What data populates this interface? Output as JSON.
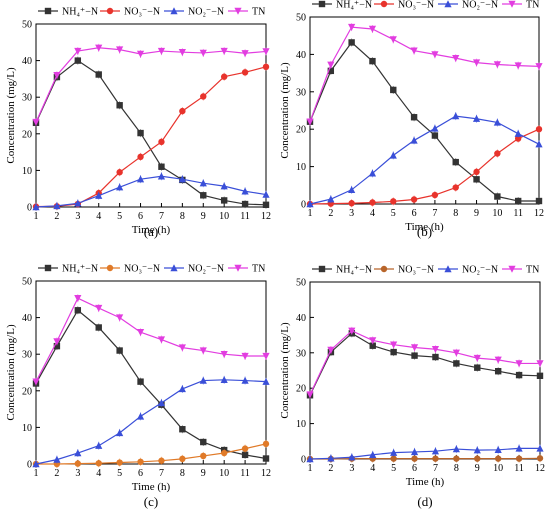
{
  "colors": {
    "nh4": "#333333",
    "no3": "#e8332c",
    "no2": "#3a4fd8",
    "tn": "#e23de0"
  },
  "chart_data": [
    {
      "type": "line",
      "panel_label": "(a)",
      "xlabel": "Time (h)",
      "ylabel": "Concentration (mg/L)",
      "xlim": [
        1,
        12
      ],
      "ylim": [
        0,
        50
      ],
      "x_ticks": [
        "1",
        "2",
        "3",
        "4",
        "5",
        "6",
        "7",
        "8",
        "9",
        "10",
        "11",
        "12"
      ],
      "y_ticks": [
        "0",
        "10",
        "20",
        "30",
        "40",
        "50"
      ],
      "legend_position": "top",
      "grid": false,
      "x": [
        1,
        2,
        3,
        4,
        5,
        6,
        7,
        8,
        9,
        10,
        11,
        12
      ],
      "series": [
        {
          "name": "NH₄⁺−N",
          "color": "#333333",
          "marker": "square",
          "values": [
            23.0,
            35.5,
            40.0,
            36.2,
            27.8,
            20.2,
            11.0,
            7.4,
            3.2,
            1.8,
            0.8,
            0.6
          ]
        },
        {
          "name": "NO₃⁻−N",
          "color": "#e8332c",
          "marker": "circle",
          "values": [
            0.1,
            0.2,
            0.8,
            3.8,
            9.5,
            13.7,
            17.8,
            26.2,
            30.2,
            35.6,
            36.8,
            38.3
          ]
        },
        {
          "name": "NO₂⁻−N",
          "color": "#3a4fd8",
          "marker": "triangle-up",
          "values": [
            0.0,
            0.3,
            1.0,
            3.1,
            5.4,
            7.6,
            8.4,
            7.6,
            6.5,
            5.7,
            4.3,
            3.4
          ]
        },
        {
          "name": "TN",
          "color": "#e23de0",
          "marker": "triangle-down",
          "values": [
            23.2,
            36.0,
            42.6,
            43.5,
            43.0,
            41.8,
            42.6,
            42.3,
            42.1,
            42.6,
            42.0,
            42.5
          ]
        }
      ]
    },
    {
      "type": "line",
      "panel_label": "(b)",
      "xlabel": "Time (h)",
      "ylabel": "Concentration (mg/L)",
      "xlim": [
        1,
        12
      ],
      "ylim": [
        0,
        50
      ],
      "x_ticks": [
        "1",
        "2",
        "3",
        "4",
        "5",
        "6",
        "7",
        "8",
        "9",
        "10",
        "11",
        "12"
      ],
      "y_ticks": [
        "0",
        "10",
        "20",
        "30",
        "40",
        "50"
      ],
      "legend_position": "top",
      "grid": false,
      "x": [
        1,
        2,
        3,
        4,
        5,
        6,
        7,
        8,
        9,
        10,
        11,
        12
      ],
      "series": [
        {
          "name": "NH₄⁺−N",
          "color": "#333333",
          "marker": "square",
          "values": [
            22.0,
            35.6,
            43.2,
            38.2,
            30.5,
            23.2,
            18.3,
            11.2,
            6.6,
            2.0,
            0.8,
            0.8
          ]
        },
        {
          "name": "NO₃⁻−N",
          "color": "#e8332c",
          "marker": "circle",
          "values": [
            0.0,
            0.1,
            0.2,
            0.4,
            0.7,
            1.2,
            2.4,
            4.4,
            8.6,
            13.5,
            17.5,
            20.0
          ]
        },
        {
          "name": "NO₂⁻−N",
          "color": "#3a4fd8",
          "marker": "triangle-up",
          "values": [
            0.0,
            1.3,
            3.8,
            8.2,
            13.0,
            17.0,
            20.2,
            23.5,
            22.8,
            21.8,
            18.8,
            16.0
          ]
        },
        {
          "name": "TN",
          "color": "#e23de0",
          "marker": "triangle-down",
          "values": [
            22.0,
            37.2,
            47.3,
            46.8,
            44.0,
            41.0,
            40.0,
            39.0,
            37.8,
            37.3,
            37.0,
            36.8
          ]
        }
      ]
    },
    {
      "type": "line",
      "panel_label": "(c)",
      "xlabel": "Time (h)",
      "ylabel": "Concentration (mg/L)",
      "xlim": [
        1,
        12
      ],
      "ylim": [
        0,
        50
      ],
      "x_ticks": [
        "1",
        "2",
        "3",
        "4",
        "5",
        "6",
        "7",
        "8",
        "9",
        "10",
        "11",
        "12"
      ],
      "y_ticks": [
        "0",
        "10",
        "20",
        "30",
        "40",
        "50"
      ],
      "legend_position": "top",
      "grid": false,
      "x": [
        1,
        2,
        3,
        4,
        5,
        6,
        7,
        8,
        9,
        10,
        11,
        12
      ],
      "series": [
        {
          "name": "NH₄⁺−N",
          "color": "#333333",
          "marker": "square",
          "values": [
            22.0,
            32.2,
            42.0,
            37.3,
            31.0,
            22.5,
            16.2,
            9.5,
            6.0,
            3.8,
            2.5,
            1.5
          ]
        },
        {
          "name": "NO₃⁻−N",
          "color": "#e07a28",
          "marker": "circle",
          "values": [
            0.0,
            0.0,
            0.1,
            0.2,
            0.4,
            0.6,
            0.9,
            1.4,
            2.2,
            3.0,
            4.2,
            5.5
          ]
        },
        {
          "name": "NO₂⁻−N",
          "color": "#3a4fd8",
          "marker": "triangle-up",
          "values": [
            0.0,
            1.2,
            3.0,
            5.0,
            8.5,
            13.0,
            16.7,
            20.5,
            22.8,
            23.0,
            22.8,
            22.5
          ]
        },
        {
          "name": "TN",
          "color": "#e23de0",
          "marker": "triangle-down",
          "values": [
            22.5,
            33.5,
            45.3,
            42.6,
            40.0,
            36.0,
            34.0,
            31.8,
            31.0,
            30.0,
            29.5,
            29.5
          ]
        }
      ]
    },
    {
      "type": "line",
      "panel_label": "(d)",
      "xlabel": "Time (h)",
      "ylabel": "Concentration (mg/L)",
      "xlim": [
        1,
        12
      ],
      "ylim": [
        0,
        50
      ],
      "x_ticks": [
        "1",
        "2",
        "3",
        "4",
        "5",
        "6",
        "7",
        "8",
        "9",
        "10",
        "11",
        "12"
      ],
      "y_ticks": [
        "0",
        "10",
        "20",
        "30",
        "40",
        "50"
      ],
      "legend_position": "top",
      "grid": false,
      "x": [
        1,
        2,
        3,
        4,
        5,
        6,
        7,
        8,
        9,
        10,
        11,
        12
      ],
      "series": [
        {
          "name": "NH₄⁺−N",
          "color": "#333333",
          "marker": "square",
          "values": [
            18.0,
            30.2,
            35.5,
            32.0,
            30.2,
            29.2,
            28.8,
            27.0,
            25.8,
            24.8,
            23.7,
            23.5
          ]
        },
        {
          "name": "NO₃⁻−N",
          "color": "#b8652a",
          "marker": "circle",
          "values": [
            0.0,
            0.0,
            0.1,
            0.1,
            0.1,
            0.1,
            0.1,
            0.1,
            0.1,
            0.1,
            0.1,
            0.2
          ]
        },
        {
          "name": "NO₂⁻−N",
          "color": "#3a4fd8",
          "marker": "triangle-up",
          "values": [
            0.0,
            0.2,
            0.5,
            1.2,
            1.8,
            2.0,
            2.2,
            2.8,
            2.5,
            2.6,
            3.0,
            3.0
          ]
        },
        {
          "name": "TN",
          "color": "#e23de0",
          "marker": "triangle-down",
          "values": [
            18.2,
            30.8,
            36.2,
            33.5,
            32.3,
            31.5,
            31.0,
            30.0,
            28.5,
            28.0,
            27.0,
            27.0
          ]
        }
      ]
    }
  ]
}
